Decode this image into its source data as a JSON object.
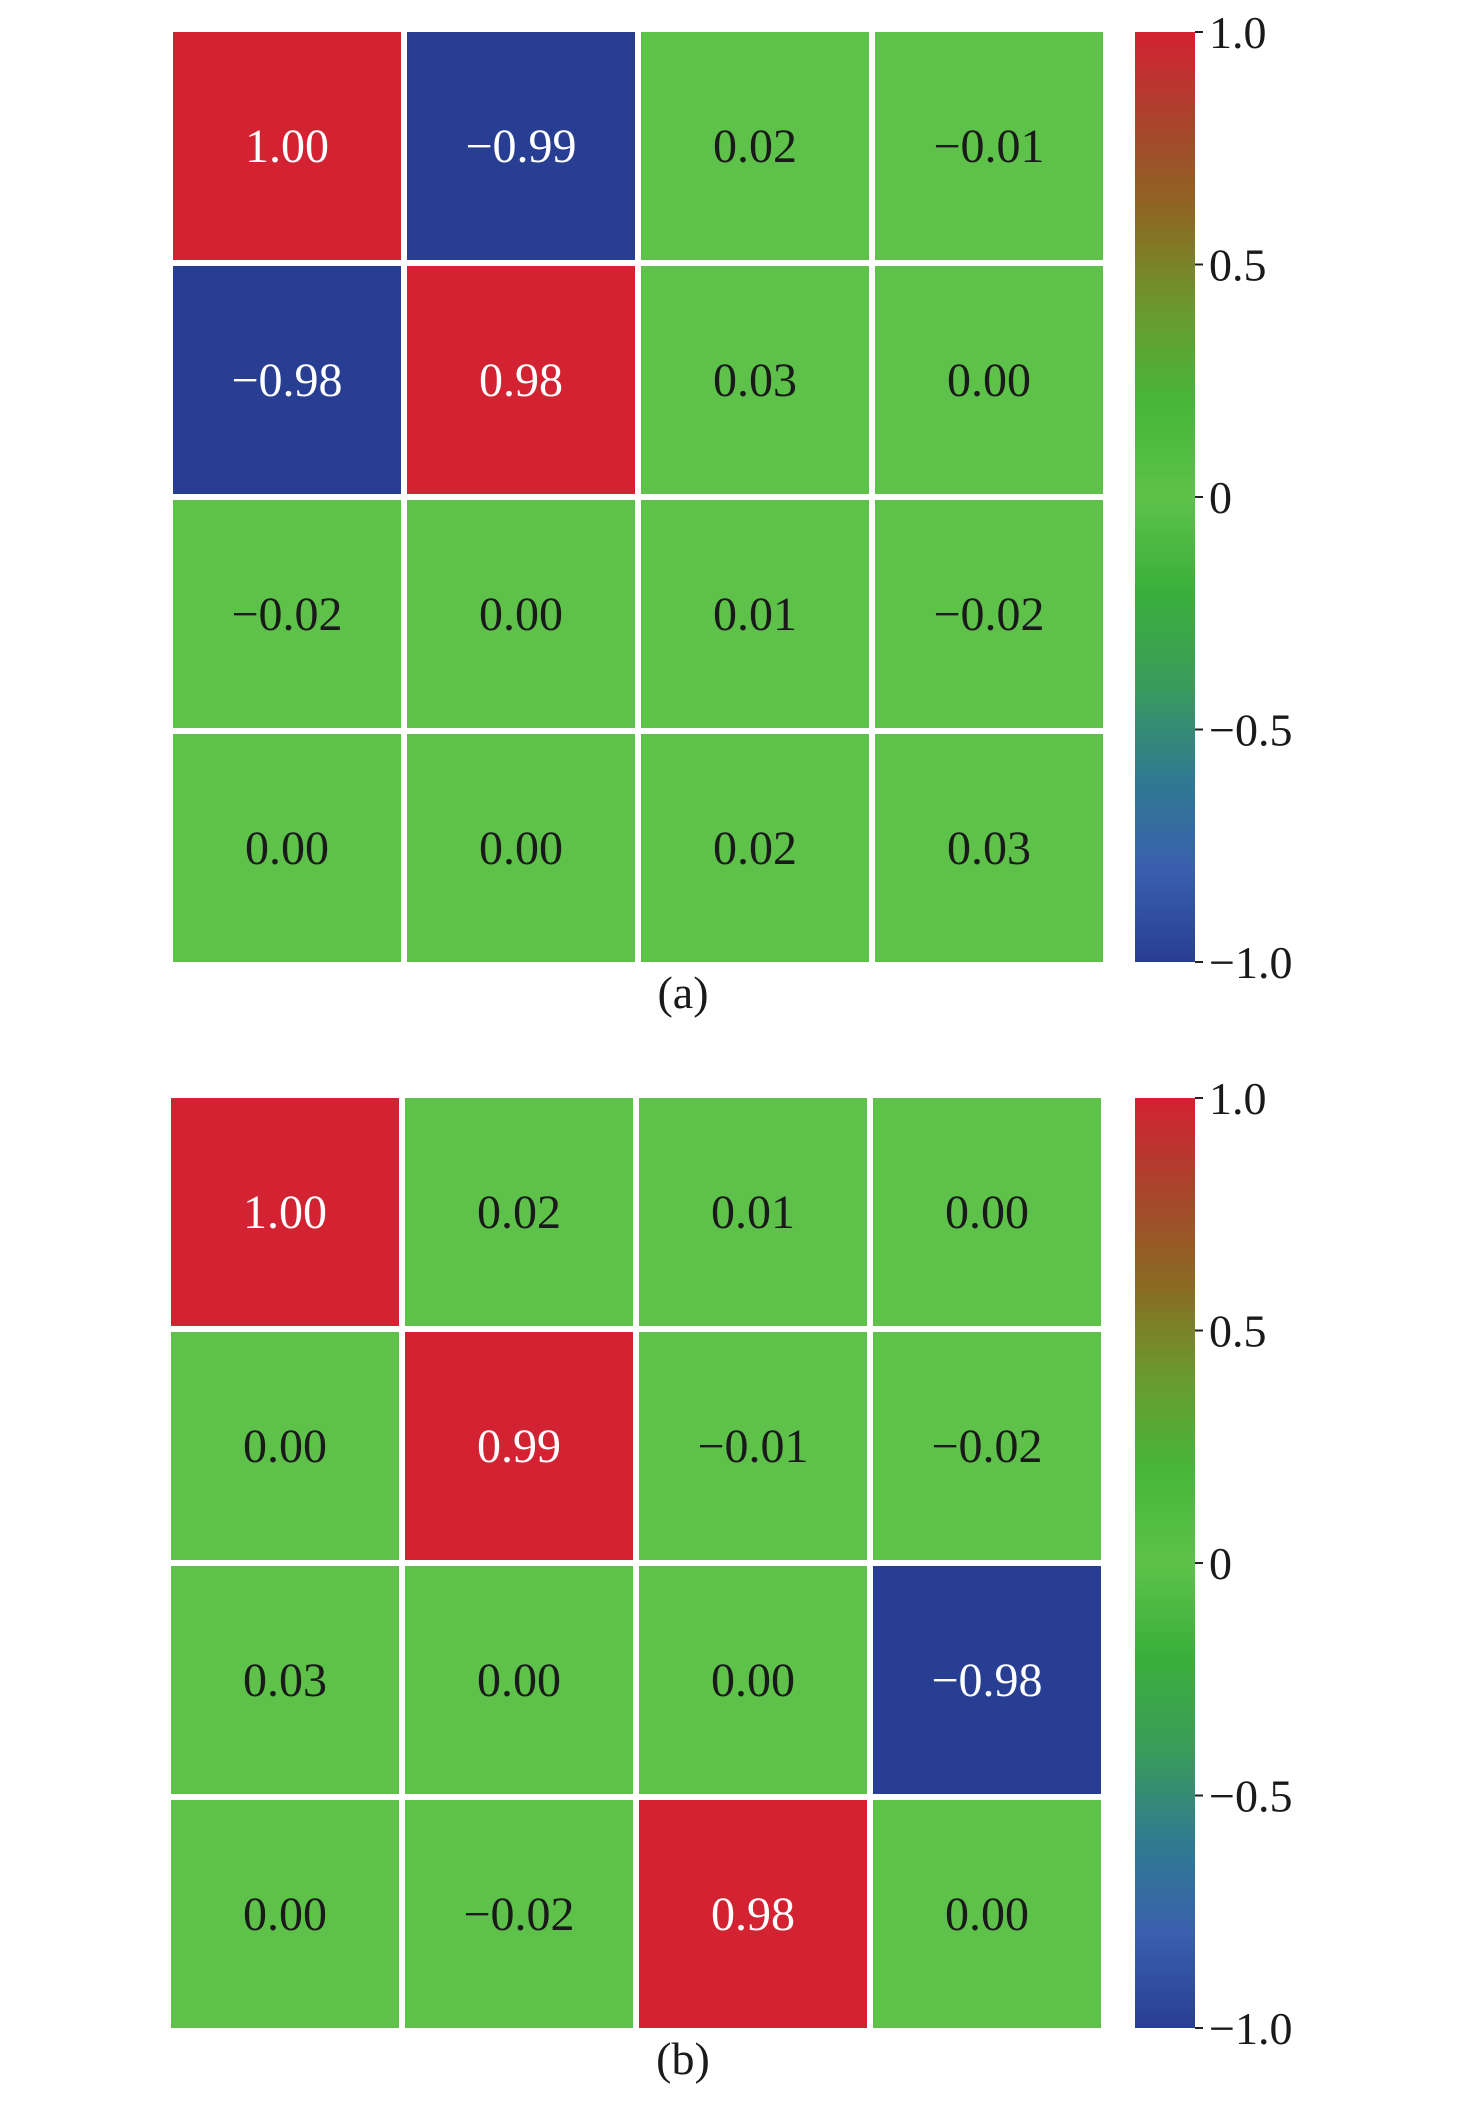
{
  "chart_data": [
    {
      "type": "heatmap",
      "caption": "(a)",
      "values": [
        [
          1.0,
          -0.99,
          0.02,
          -0.01
        ],
        [
          -0.98,
          0.98,
          0.03,
          0.0
        ],
        [
          -0.02,
          0.0,
          0.01,
          -0.02
        ],
        [
          0.0,
          0.0,
          0.02,
          0.03
        ]
      ],
      "labels": [
        [
          "1.00",
          "−0.99",
          "0.02",
          "−0.01"
        ],
        [
          "−0.98",
          "0.98",
          "0.03",
          "0.00"
        ],
        [
          "−0.02",
          "0.00",
          "0.01",
          "−0.02"
        ],
        [
          "0.00",
          "0.00",
          "0.02",
          "0.03"
        ]
      ],
      "colorbar": {
        "range": [
          -1.0,
          1.0
        ],
        "ticks": [
          1.0,
          0.5,
          0,
          -0.5,
          -1.0
        ],
        "tick_labels": [
          "1.0",
          "0.5",
          "0",
          "−0.5",
          "−1.0"
        ],
        "colormap": [
          "#283e92",
          "#3a5fae",
          "#2f7b8f",
          "#3a9c5a",
          "#3ab03a",
          "#5ec24a",
          "#46b63a",
          "#6a9a2e",
          "#8a6a22",
          "#a8452c",
          "#d32232"
        ]
      }
    },
    {
      "type": "heatmap",
      "caption": "(b)",
      "values": [
        [
          1.0,
          0.02,
          0.01,
          0.0
        ],
        [
          0.0,
          0.99,
          -0.01,
          -0.02
        ],
        [
          0.03,
          0.0,
          0.0,
          -0.98
        ],
        [
          0.0,
          -0.02,
          0.98,
          0.0
        ]
      ],
      "labels": [
        [
          "1.00",
          "0.02",
          "0.01",
          "0.00"
        ],
        [
          "0.00",
          "0.99",
          "−0.01",
          "−0.02"
        ],
        [
          "0.03",
          "0.00",
          "0.00",
          "−0.98"
        ],
        [
          "0.00",
          "−0.02",
          "0.98",
          "0.00"
        ]
      ],
      "colorbar": {
        "range": [
          -1.0,
          1.0
        ],
        "ticks": [
          1.0,
          0.5,
          0,
          -0.5,
          -1.0
        ],
        "tick_labels": [
          "1.0",
          "0.5",
          "0",
          "−0.5",
          "−1.0"
        ],
        "colormap": [
          "#283e92",
          "#3a5fae",
          "#2f7b8f",
          "#3a9c5a",
          "#3ab03a",
          "#5ec24a",
          "#46b63a",
          "#6a9a2e",
          "#8a6a22",
          "#a8452c",
          "#d32232"
        ]
      }
    }
  ],
  "colors": {
    "high": "#d32232",
    "low": "#283e92",
    "neutral": "#5ec24a",
    "dark_text": "#1a1a1a",
    "light_text": "#ffffff"
  }
}
